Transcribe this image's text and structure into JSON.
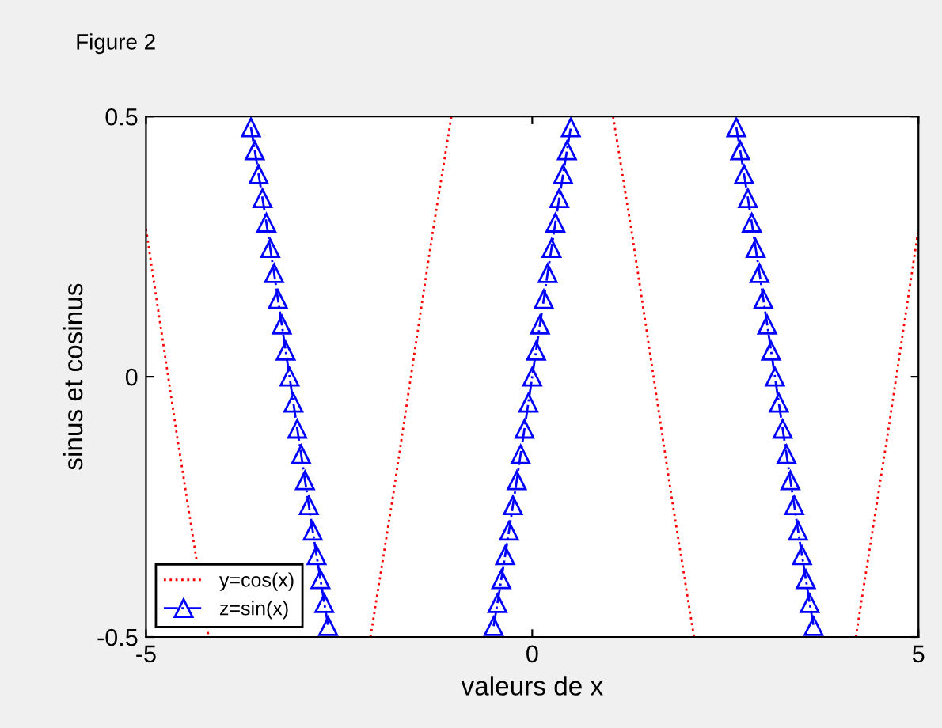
{
  "chart_data": {
    "type": "line",
    "xlabel": "valeurs de x",
    "ylabel": "sinus et cosinus",
    "annotations": [
      "Figure 2"
    ],
    "xlim": [
      -5,
      5
    ],
    "xticks": [
      -5,
      0,
      5
    ],
    "ylim": [
      -0.5,
      0.5
    ],
    "yticks": [
      -0.5,
      0,
      0.5
    ],
    "grid": false,
    "legend": "bottom left",
    "series": [
      {
        "name": "y=cos(x)",
        "color": "#ff0000",
        "line_style": "dotted",
        "marker": "none",
        "x": [
          -5,
          -4.6,
          -4.189,
          null,
          -2.094,
          -1.8,
          -1.571,
          -1.3,
          -1.047,
          null,
          1.047,
          1.3,
          1.571,
          1.8,
          2.094,
          null,
          4.189,
          4.6,
          5
        ],
        "values": [
          0.284,
          -0.112,
          -0.5,
          null,
          -0.5,
          -0.227,
          0,
          0.267,
          0.5,
          null,
          0.5,
          0.267,
          0,
          -0.227,
          -0.5,
          null,
          -0.5,
          -0.112,
          0.284
        ]
      },
      {
        "name": "z=sin(x)",
        "color": "#0000ff",
        "line_style": "dashed",
        "marker": "triangle",
        "x": [
          -3.642,
          -3.592,
          -3.542,
          -3.492,
          -3.442,
          -3.392,
          -3.342,
          -3.292,
          -3.242,
          -3.192,
          -3.142,
          -3.092,
          -3.042,
          -2.992,
          -2.942,
          -2.892,
          -2.842,
          -2.792,
          -2.742,
          -2.692,
          -2.642,
          null,
          -0.5,
          -0.45,
          -0.4,
          -0.35,
          -0.3,
          -0.25,
          -0.2,
          -0.15,
          -0.1,
          -0.05,
          0,
          0.05,
          0.1,
          0.15,
          0.2,
          0.25,
          0.3,
          0.35,
          0.4,
          0.45,
          0.5,
          null,
          2.642,
          2.692,
          2.742,
          2.792,
          2.842,
          2.892,
          2.942,
          2.992,
          3.042,
          3.092,
          3.142,
          3.192,
          3.242,
          3.292,
          3.342,
          3.392,
          3.442,
          3.492,
          3.542,
          3.592,
          3.642
        ],
        "values": [
          0.479,
          0.435,
          0.389,
          0.343,
          0.296,
          0.247,
          0.199,
          0.149,
          0.1,
          0.05,
          0,
          -0.05,
          -0.1,
          -0.149,
          -0.199,
          -0.247,
          -0.296,
          -0.343,
          -0.389,
          -0.435,
          -0.479,
          null,
          -0.479,
          -0.435,
          -0.389,
          -0.343,
          -0.296,
          -0.247,
          -0.199,
          -0.149,
          -0.1,
          -0.05,
          0,
          0.05,
          0.1,
          0.149,
          0.199,
          0.247,
          0.296,
          0.343,
          0.389,
          0.435,
          0.479,
          null,
          0.479,
          0.435,
          0.389,
          0.343,
          0.296,
          0.247,
          0.199,
          0.149,
          0.1,
          0.05,
          0,
          -0.05,
          -0.1,
          -0.149,
          -0.199,
          -0.247,
          -0.296,
          -0.343,
          -0.389,
          -0.435,
          -0.479
        ]
      }
    ]
  }
}
